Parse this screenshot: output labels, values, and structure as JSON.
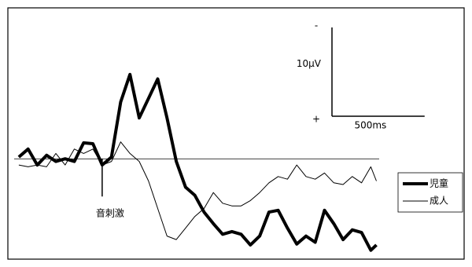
{
  "chart_data": {
    "type": "line",
    "x": [
      -450,
      -400,
      -350,
      -300,
      -250,
      -200,
      -150,
      -100,
      -50,
      0,
      50,
      100,
      150,
      200,
      250,
      300,
      350,
      400,
      450,
      500,
      550,
      600,
      650,
      700,
      750,
      800,
      850,
      900,
      950,
      1000,
      1050,
      1100,
      1150,
      1200,
      1250,
      1300,
      1350,
      1400,
      1450,
      1480
    ],
    "series": [
      {
        "name": "児童",
        "color": "#000000",
        "width": 4,
        "values": [
          -0.2,
          -1.1,
          0.7,
          -0.4,
          0.3,
          0,
          0.3,
          -1.8,
          -1.7,
          0.7,
          -0.2,
          -6.4,
          -9.5,
          -4.6,
          -6.8,
          -9.0,
          -4.6,
          0.3,
          3.2,
          4.1,
          6.0,
          7.3,
          8.5,
          8.2,
          8.5,
          9.7,
          8.7,
          6.0,
          5.8,
          7.8,
          9.6,
          8.7,
          9.4,
          5.8,
          7.3,
          9.1,
          8.0,
          8.3,
          10.3,
          9.7
        ]
      },
      {
        "name": "成人",
        "color": "#000000",
        "width": 1,
        "values": [
          0.7,
          0.9,
          0.7,
          0.9,
          -0.6,
          0.7,
          -1.1,
          -0.6,
          -1.1,
          0.7,
          0.3,
          -1.9,
          -0.6,
          0.3,
          2.5,
          5.6,
          8.7,
          9.1,
          7.8,
          6.5,
          5.6,
          3.8,
          5.0,
          5.3,
          5.3,
          4.7,
          3.8,
          2.7,
          2.0,
          2.3,
          0.7,
          2.0,
          2.3,
          1.6,
          2.7,
          2.9,
          2.0,
          2.7,
          0.9,
          2.5
        ]
      }
    ],
    "xlim": [
      -475,
      1495
    ],
    "ylim": [
      -17,
      11.3
    ],
    "y_inverted": true,
    "scale_bar": {
      "y_size": 10,
      "y_label": "10μV",
      "x_size": 500,
      "x_label": "500ms",
      "negative_label": "-",
      "positive_label": "+"
    },
    "annotations": [
      {
        "text": "音刺激",
        "x": 0
      }
    ],
    "legend": "right"
  }
}
